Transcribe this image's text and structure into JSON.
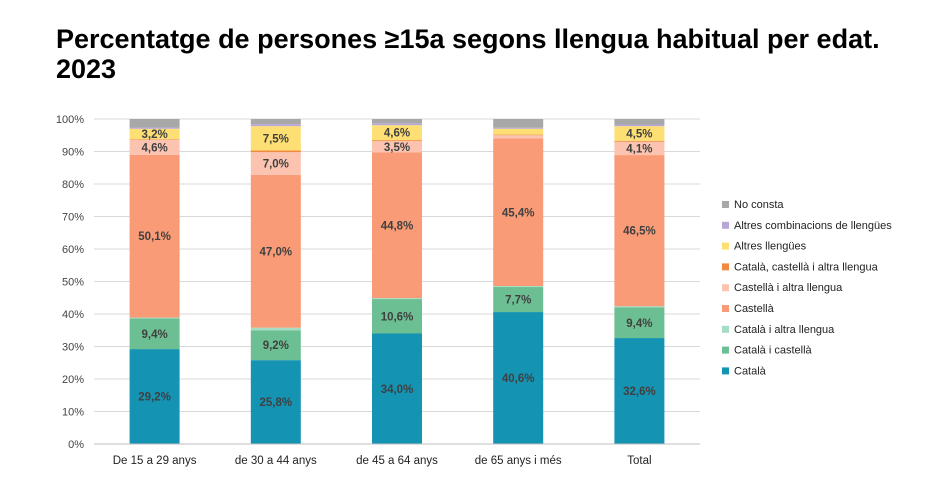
{
  "title": "Percentatge de persones ≥15a segons llengua habitual per edat. 2023",
  "chart_data": {
    "type": "bar",
    "stacked": true,
    "percent_axis": true,
    "ylim": [
      0,
      100
    ],
    "y_ticks": [
      "0%",
      "10%",
      "20%",
      "30%",
      "40%",
      "50%",
      "60%",
      "70%",
      "80%",
      "90%",
      "100%"
    ],
    "grid": true,
    "legend_position": "right",
    "categories": [
      "De 15 a 29 anys",
      "de 30 a 44 anys",
      "de 45 a 64 anys",
      "de 65 anys i més",
      "Total"
    ],
    "series": [
      {
        "name": "Català",
        "color": "#1493B3",
        "values": [
          29.2,
          25.8,
          34.0,
          40.6,
          32.6
        ],
        "labels": [
          "29,2%",
          "25,8%",
          "34,0%",
          "40,6%",
          "32,6%"
        ]
      },
      {
        "name": "Català i castellà",
        "color": "#6BBF92",
        "values": [
          9.4,
          9.2,
          10.6,
          7.7,
          9.4
        ],
        "labels": [
          "9,4%",
          "9,2%",
          "10,6%",
          "7,7%",
          "9,4%"
        ]
      },
      {
        "name": "Català i altra llengua",
        "color": "#A6DCC4",
        "values": [
          0.3,
          0.8,
          0.3,
          0.3,
          0.4
        ],
        "labels": [
          "",
          "",
          "",
          "",
          ""
        ]
      },
      {
        "name": "Castellà",
        "color": "#F99B76",
        "values": [
          50.1,
          47.0,
          44.8,
          45.4,
          46.5
        ],
        "labels": [
          "50,1%",
          "47,0%",
          "44,8%",
          "45,4%",
          "46,5%"
        ]
      },
      {
        "name": "Castellà i altra llengua",
        "color": "#FBC3B0",
        "values": [
          4.6,
          7.0,
          3.5,
          1.0,
          4.1
        ],
        "labels": [
          "4,6%",
          "7,0%",
          "3,5%",
          "",
          "4,1%"
        ]
      },
      {
        "name": "Català, castellà i altra llengua",
        "color": "#F08A40",
        "values": [
          0.2,
          0.5,
          0.3,
          0.2,
          0.3
        ],
        "labels": [
          "",
          "",
          "",
          "",
          ""
        ]
      },
      {
        "name": "Altres llengües",
        "color": "#FDDF74",
        "values": [
          3.2,
          7.5,
          4.6,
          1.8,
          4.5
        ],
        "labels": [
          "3,2%",
          "7,5%",
          "4,6%",
          "",
          "4,5%"
        ]
      },
      {
        "name": "Altres combinacions de llengües",
        "color": "#B7A6D6",
        "values": [
          0.4,
          0.6,
          0.6,
          0.3,
          0.5
        ],
        "labels": [
          "",
          "",
          "",
          "",
          ""
        ]
      },
      {
        "name": "No consta",
        "color": "#A8A8A8",
        "values": [
          2.6,
          1.6,
          1.3,
          2.7,
          1.7
        ],
        "labels": [
          "",
          "",
          "",
          "",
          ""
        ]
      }
    ],
    "label_colors": {
      "dark": "#404040"
    },
    "legend_order": [
      "No consta",
      "Altres combinacions de llengües",
      "Altres llengües",
      "Català, castellà i altra llengua",
      "Castellà i altra llengua",
      "Castellà",
      "Català i altra llengua",
      "Català i castellà",
      "Català"
    ]
  }
}
